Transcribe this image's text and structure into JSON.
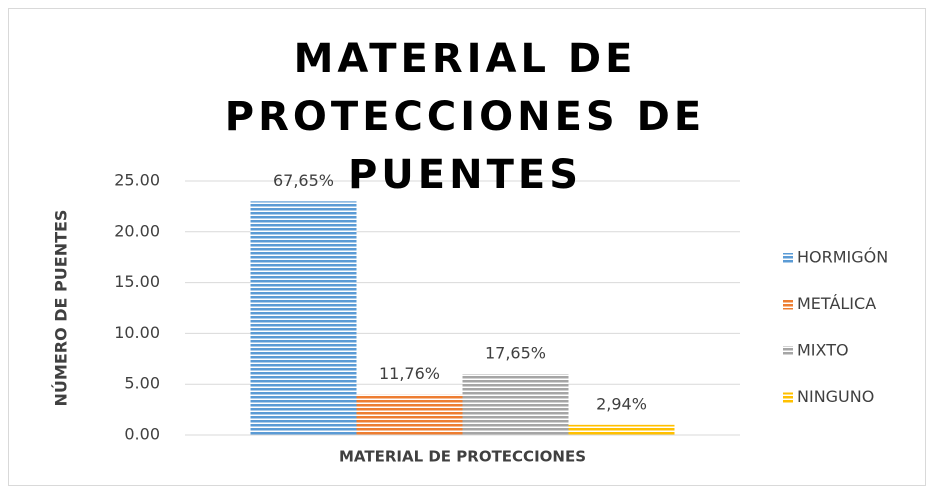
{
  "chart_data": {
    "type": "bar",
    "title": "MATERIAL DE PROTECCIONES DE PUENTES",
    "y_label": "NÚMERO DE PUENTES",
    "categories": [
      "MATERIAL DE PROTECCIONES"
    ],
    "series": [
      {
        "name": "HORMIGÓN",
        "color": "#5b9bd5",
        "values": [
          23
        ],
        "value_labels": [
          "67,65%"
        ]
      },
      {
        "name": "METÁLICA",
        "color": "#ed7d31",
        "values": [
          4
        ],
        "value_labels": [
          "11,76%"
        ]
      },
      {
        "name": "MIXTO",
        "color": "#a5a5a5",
        "values": [
          6
        ],
        "value_labels": [
          "17,65%"
        ]
      },
      {
        "name": "NINGUNO",
        "color": "#ffc000",
        "values": [
          1
        ],
        "value_labels": [
          "2,94%"
        ]
      }
    ],
    "ylim": [
      0,
      25
    ],
    "yticks": [
      {
        "value": 0,
        "label": "0.00"
      },
      {
        "value": 5,
        "label": "5.00"
      },
      {
        "value": 10,
        "label": "10.00"
      },
      {
        "value": 15,
        "label": "15.00"
      },
      {
        "value": 20,
        "label": "20.00"
      },
      {
        "value": 25,
        "label": "25.00"
      }
    ],
    "grid": true,
    "legend": "right"
  }
}
